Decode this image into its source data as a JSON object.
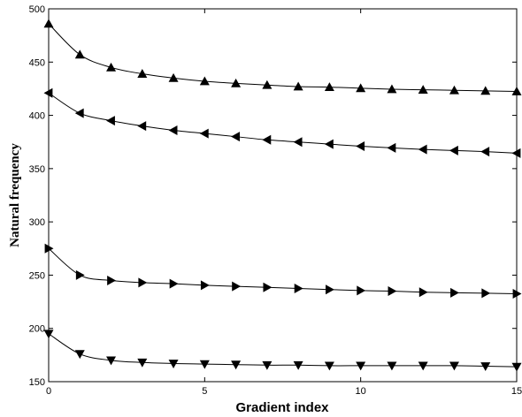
{
  "chart_data": {
    "type": "line",
    "title": "",
    "xlabel": "Gradient index",
    "ylabel": "Natural frequency",
    "xlim": [
      0,
      15
    ],
    "ylim": [
      150,
      500
    ],
    "x_ticks": [
      0,
      5,
      10,
      15
    ],
    "y_ticks": [
      150,
      200,
      250,
      300,
      350,
      400,
      450,
      500
    ],
    "grid": false,
    "legend": "none",
    "line_color": "#000000",
    "x": [
      0,
      1,
      2,
      3,
      4,
      5,
      6,
      7,
      8,
      9,
      10,
      11,
      12,
      13,
      14,
      15
    ],
    "series": [
      {
        "marker": "triangle-up",
        "values": [
          486,
          457,
          445,
          439,
          435,
          432,
          430,
          428.5,
          427,
          426.5,
          425.5,
          424.5,
          424,
          423.5,
          423,
          422.5
        ]
      },
      {
        "marker": "triangle-left",
        "values": [
          421,
          402,
          395,
          390,
          386,
          383,
          380,
          377,
          375,
          373,
          371,
          369.5,
          368,
          367,
          366,
          364.5
        ]
      },
      {
        "marker": "triangle-right",
        "values": [
          275,
          250,
          245,
          243,
          242,
          240.5,
          239.5,
          238.5,
          237.5,
          236.5,
          235.5,
          235,
          234,
          233.5,
          233,
          232.5
        ]
      },
      {
        "marker": "triangle-down",
        "values": [
          195,
          176,
          170,
          168,
          167,
          166.5,
          166,
          165.5,
          165.5,
          165,
          165,
          165,
          165,
          165,
          164.5,
          164
        ]
      }
    ]
  }
}
